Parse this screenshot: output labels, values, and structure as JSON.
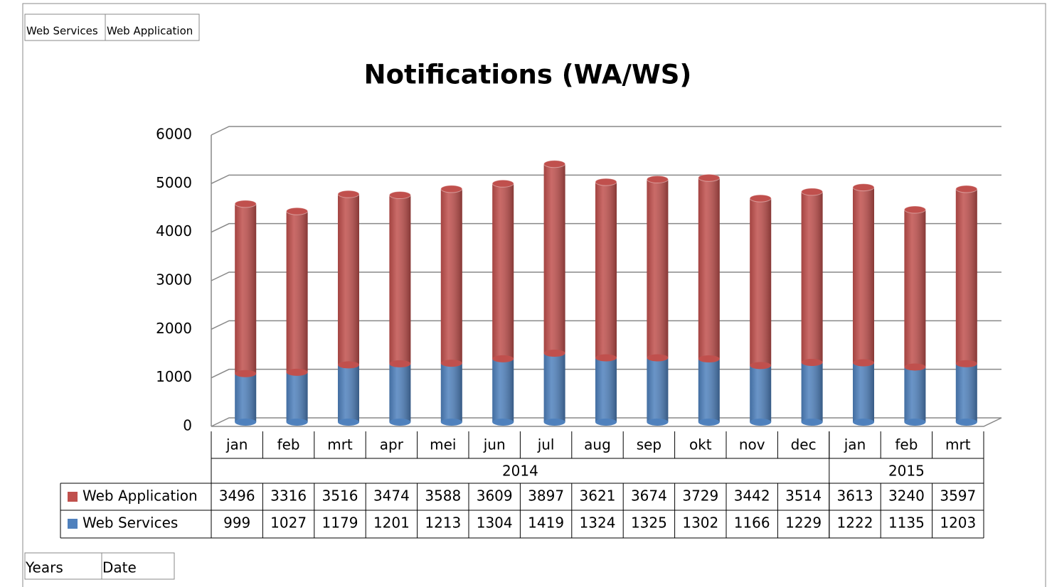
{
  "chart_data": {
    "type": "stacked_cylinder",
    "title": "Notifications (WA/WS)",
    "value_field_buttons": [
      "Web Services",
      "Web Application"
    ],
    "axis_field_buttons": [
      "Years",
      "Date"
    ],
    "category_groups": [
      {
        "label": "2014",
        "categories": [
          "jan",
          "feb",
          "mrt",
          "apr",
          "mei",
          "jun",
          "jul",
          "aug",
          "sep",
          "okt",
          "nov",
          "dec"
        ]
      },
      {
        "label": "2015",
        "categories": [
          "jan",
          "feb",
          "mrt"
        ]
      }
    ],
    "series": [
      {
        "name": "Web Services",
        "color": "#4f81bd",
        "values": [
          999,
          1027,
          1179,
          1201,
          1213,
          1304,
          1419,
          1324,
          1325,
          1302,
          1166,
          1229,
          1222,
          1135,
          1203
        ]
      },
      {
        "name": "Web Application",
        "color": "#c0504d",
        "values": [
          3496,
          3316,
          3516,
          3474,
          3588,
          3609,
          3897,
          3621,
          3674,
          3729,
          3442,
          3514,
          3613,
          3240,
          3597
        ]
      }
    ],
    "ylim": [
      0,
      6000
    ],
    "yticks": [
      0,
      1000,
      2000,
      3000,
      4000,
      5000,
      6000
    ],
    "grid": true,
    "data_table": true
  }
}
